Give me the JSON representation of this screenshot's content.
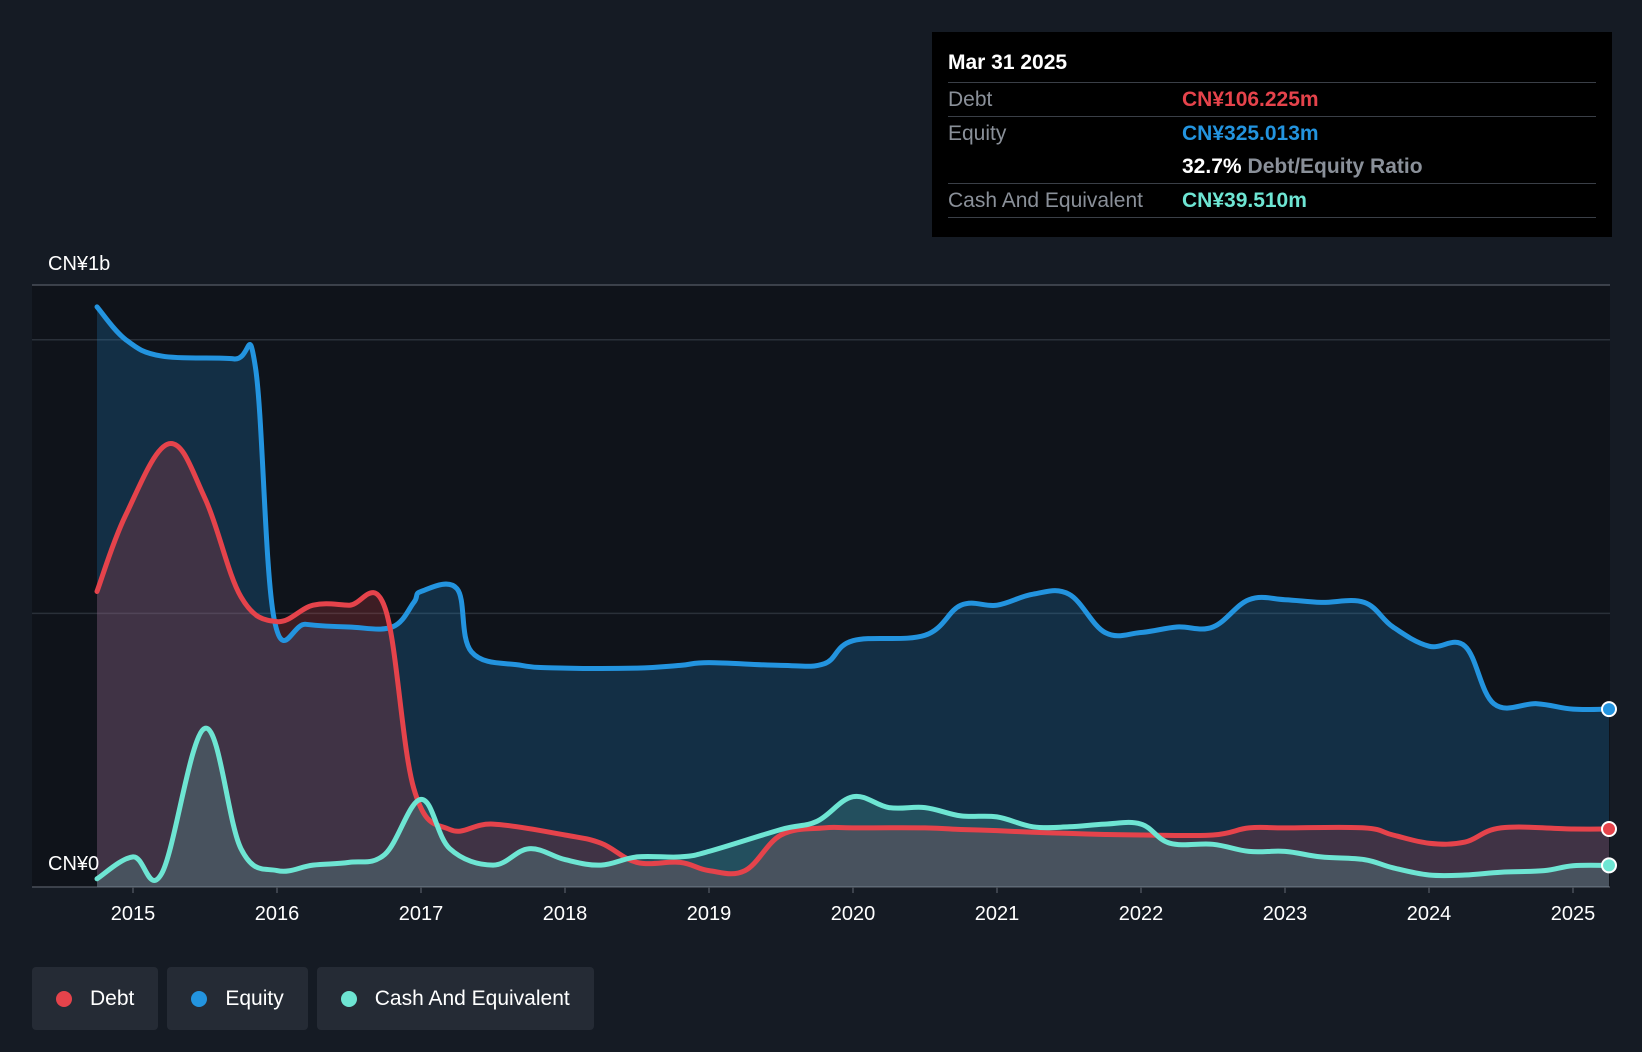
{
  "tooltip": {
    "date": "Mar 31 2025",
    "debt_label": "Debt",
    "debt_value": "CN¥106.225m",
    "equity_label": "Equity",
    "equity_value": "CN¥325.013m",
    "ratio_value": "32.7%",
    "ratio_label": "Debt/Equity Ratio",
    "cash_label": "Cash And Equivalent",
    "cash_value": "CN¥39.510m"
  },
  "legend": [
    {
      "label": "Debt",
      "color": "#e5434b"
    },
    {
      "label": "Equity",
      "color": "#2394df"
    },
    {
      "label": "Cash And Equivalent",
      "color": "#6ee5d3"
    }
  ],
  "chart_data": {
    "type": "area",
    "title": "",
    "xlabel": "",
    "ylabel": "",
    "y_top_label": "CN¥1b",
    "y_bottom_label": "CN¥0",
    "ylim": [
      0,
      1100
    ],
    "xlim": [
      2014.75,
      2025.25
    ],
    "x_ticks": [
      "2015",
      "2016",
      "2017",
      "2018",
      "2019",
      "2020",
      "2021",
      "2022",
      "2023",
      "2024",
      "2025"
    ],
    "x_tick_values": [
      2015,
      2016,
      2017,
      2018,
      2019,
      2020,
      2021,
      2022,
      2023,
      2024,
      2025
    ],
    "gridlines_y": [
      500,
      1000
    ],
    "series": [
      {
        "name": "Equity",
        "color": "#2394df",
        "points": [
          [
            2014.75,
            1060
          ],
          [
            2014.95,
            1000
          ],
          [
            2015.2,
            970
          ],
          [
            2015.7,
            965
          ],
          [
            2015.85,
            950
          ],
          [
            2015.98,
            490
          ],
          [
            2016.2,
            480
          ],
          [
            2016.5,
            475
          ],
          [
            2016.8,
            475
          ],
          [
            2016.95,
            520
          ],
          [
            2017.0,
            540
          ],
          [
            2017.25,
            545
          ],
          [
            2017.35,
            430
          ],
          [
            2017.7,
            405
          ],
          [
            2018.0,
            400
          ],
          [
            2018.5,
            400
          ],
          [
            2018.8,
            405
          ],
          [
            2019.0,
            410
          ],
          [
            2019.5,
            405
          ],
          [
            2019.8,
            408
          ],
          [
            2020.0,
            450
          ],
          [
            2020.5,
            460
          ],
          [
            2020.75,
            515
          ],
          [
            2021.0,
            515
          ],
          [
            2021.25,
            535
          ],
          [
            2021.5,
            535
          ],
          [
            2021.75,
            465
          ],
          [
            2022.0,
            465
          ],
          [
            2022.25,
            475
          ],
          [
            2022.5,
            475
          ],
          [
            2022.75,
            525
          ],
          [
            2023.0,
            525
          ],
          [
            2023.25,
            520
          ],
          [
            2023.55,
            520
          ],
          [
            2023.75,
            475
          ],
          [
            2024.0,
            440
          ],
          [
            2024.25,
            440
          ],
          [
            2024.45,
            335
          ],
          [
            2024.75,
            335
          ],
          [
            2025.0,
            325
          ],
          [
            2025.25,
            325
          ]
        ]
      },
      {
        "name": "Debt",
        "color": "#e5434b",
        "points": [
          [
            2014.75,
            540
          ],
          [
            2014.95,
            680
          ],
          [
            2015.25,
            810
          ],
          [
            2015.5,
            710
          ],
          [
            2015.75,
            530
          ],
          [
            2016.0,
            485
          ],
          [
            2016.25,
            515
          ],
          [
            2016.5,
            515
          ],
          [
            2016.75,
            510
          ],
          [
            2016.95,
            180
          ],
          [
            2017.2,
            105
          ],
          [
            2017.5,
            115
          ],
          [
            2018.0,
            95
          ],
          [
            2018.25,
            80
          ],
          [
            2018.5,
            45
          ],
          [
            2018.8,
            45
          ],
          [
            2019.0,
            30
          ],
          [
            2019.25,
            30
          ],
          [
            2019.5,
            95
          ],
          [
            2019.8,
            108
          ],
          [
            2020.0,
            108
          ],
          [
            2020.5,
            108
          ],
          [
            2020.75,
            105
          ],
          [
            2021.0,
            103
          ],
          [
            2021.25,
            100
          ],
          [
            2021.5,
            98
          ],
          [
            2021.75,
            96
          ],
          [
            2022.0,
            95
          ],
          [
            2022.5,
            95
          ],
          [
            2022.75,
            108
          ],
          [
            2023.0,
            108
          ],
          [
            2023.55,
            108
          ],
          [
            2023.75,
            95
          ],
          [
            2024.0,
            80
          ],
          [
            2024.25,
            82
          ],
          [
            2024.5,
            108
          ],
          [
            2025.0,
            106
          ],
          [
            2025.25,
            106
          ]
        ]
      },
      {
        "name": "Cash And Equivalent",
        "color": "#6ee5d3",
        "points": [
          [
            2014.75,
            15
          ],
          [
            2015.0,
            55
          ],
          [
            2015.2,
            25
          ],
          [
            2015.5,
            290
          ],
          [
            2015.75,
            70
          ],
          [
            2016.0,
            30
          ],
          [
            2016.25,
            40
          ],
          [
            2016.5,
            45
          ],
          [
            2016.75,
            60
          ],
          [
            2017.0,
            160
          ],
          [
            2017.2,
            70
          ],
          [
            2017.5,
            40
          ],
          [
            2017.75,
            70
          ],
          [
            2018.0,
            50
          ],
          [
            2018.25,
            40
          ],
          [
            2018.5,
            55
          ],
          [
            2018.8,
            55
          ],
          [
            2019.0,
            65
          ],
          [
            2019.5,
            105
          ],
          [
            2019.75,
            120
          ],
          [
            2020.0,
            165
          ],
          [
            2020.25,
            145
          ],
          [
            2020.5,
            145
          ],
          [
            2020.75,
            130
          ],
          [
            2021.0,
            128
          ],
          [
            2021.25,
            110
          ],
          [
            2021.5,
            110
          ],
          [
            2021.75,
            115
          ],
          [
            2022.0,
            115
          ],
          [
            2022.2,
            80
          ],
          [
            2022.5,
            78
          ],
          [
            2022.75,
            65
          ],
          [
            2023.0,
            65
          ],
          [
            2023.25,
            55
          ],
          [
            2023.55,
            50
          ],
          [
            2023.75,
            35
          ],
          [
            2024.0,
            22
          ],
          [
            2024.25,
            22
          ],
          [
            2024.5,
            27
          ],
          [
            2024.8,
            30
          ],
          [
            2025.0,
            39
          ],
          [
            2025.25,
            39.5
          ]
        ]
      }
    ]
  }
}
